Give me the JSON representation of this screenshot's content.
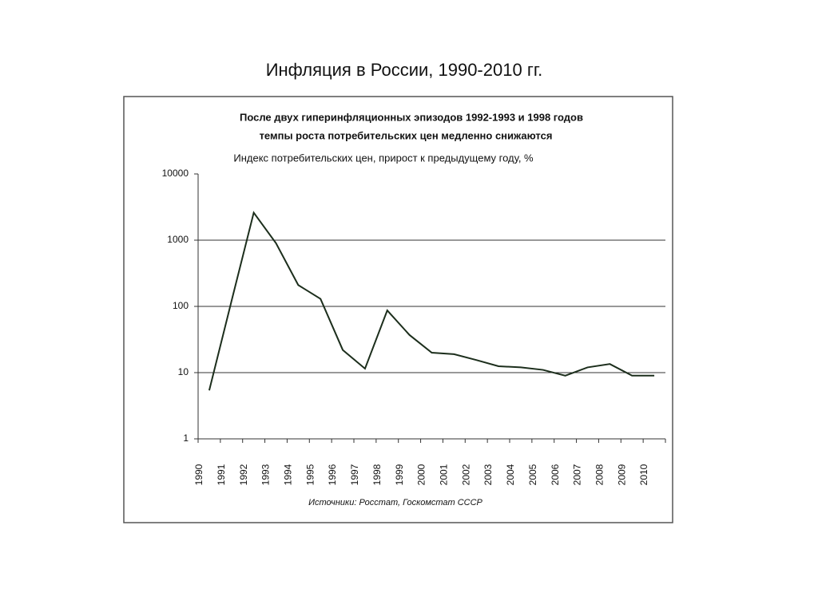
{
  "title": "Инфляция в России, 1990-2010 гг.",
  "chart_data": {
    "type": "line",
    "title": [
      "После двух гиперинфляционных эпизодов 1992-1993 и 1998 годов",
      "темпы роста потребительских цен медленно снижаются"
    ],
    "ylabel": "Индекс потребительских цен, прирост к предыдущему году, %",
    "source": "Источники: Росстат, Госкомстат СССР",
    "categories": [
      "1990",
      "1991",
      "1992",
      "1993",
      "1994",
      "1995",
      "1996",
      "1997",
      "1998",
      "1999",
      "2000",
      "2001",
      "2002",
      "2003",
      "2004",
      "2005",
      "2006",
      "2007",
      "2008",
      "2009",
      "2010"
    ],
    "values": [
      5.4,
      120,
      2600,
      900,
      210,
      130,
      22,
      11.5,
      87,
      37,
      20,
      19,
      15.5,
      12.5,
      12,
      11,
      9,
      12,
      13.5,
      9,
      9
    ],
    "color": "#1c2e1c",
    "yscale": "log",
    "ylim": [
      1,
      10000
    ],
    "yticks": [
      1,
      10,
      100,
      1000,
      10000
    ],
    "grid": true
  }
}
